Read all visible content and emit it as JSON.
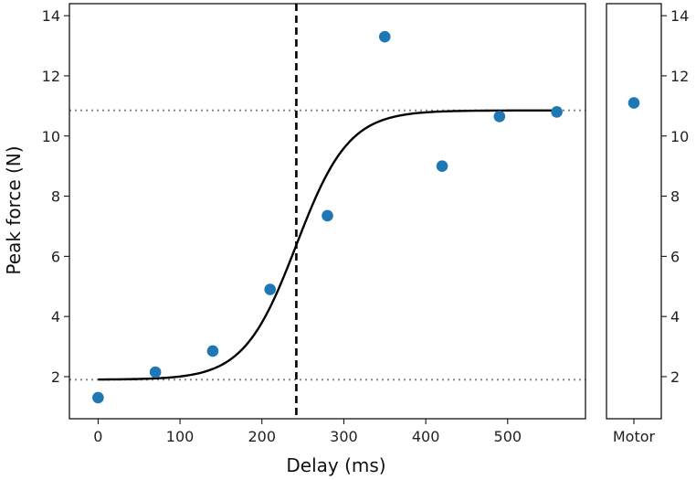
{
  "chart_data": [
    {
      "type": "scatter",
      "xlabel": "Delay (ms)",
      "ylabel": "Peak force (N)",
      "xlim": [
        -35,
        595
      ],
      "ylim": [
        0.6,
        14.4
      ],
      "x_ticks": [
        0,
        100,
        200,
        300,
        400,
        500
      ],
      "y_ticks": [
        2,
        4,
        6,
        8,
        10,
        12,
        14
      ],
      "grid": false,
      "series": [
        {
          "kind": "points",
          "color": "#1f77b4",
          "x": [
            0,
            70,
            140,
            210,
            280,
            350,
            420,
            490,
            560
          ],
          "y": [
            1.3,
            2.15,
            2.85,
            4.9,
            7.35,
            13.3,
            9.0,
            10.65,
            10.8
          ]
        },
        {
          "kind": "fit-curve",
          "shape": "logistic",
          "color": "#000000",
          "lower": 1.9,
          "upper": 10.85,
          "midpoint": 242,
          "slope_ms": 32,
          "x_range": [
            0,
            560
          ]
        }
      ],
      "reference_lines": [
        {
          "orientation": "horizontal",
          "y": 10.85,
          "style": "dotted",
          "color": "#888888"
        },
        {
          "orientation": "horizontal",
          "y": 1.9,
          "style": "dotted",
          "color": "#888888"
        },
        {
          "orientation": "vertical",
          "x": 242,
          "style": "dashed",
          "color": "#000000"
        }
      ]
    },
    {
      "type": "scatter",
      "categories": [
        "Motor"
      ],
      "ylim": [
        0.6,
        14.4
      ],
      "y_ticks": [
        2,
        4,
        6,
        8,
        10,
        12,
        14
      ],
      "y_axis_side": "right",
      "series": [
        {
          "kind": "points",
          "color": "#1f77b4",
          "values": [
            11.1
          ]
        }
      ]
    }
  ]
}
